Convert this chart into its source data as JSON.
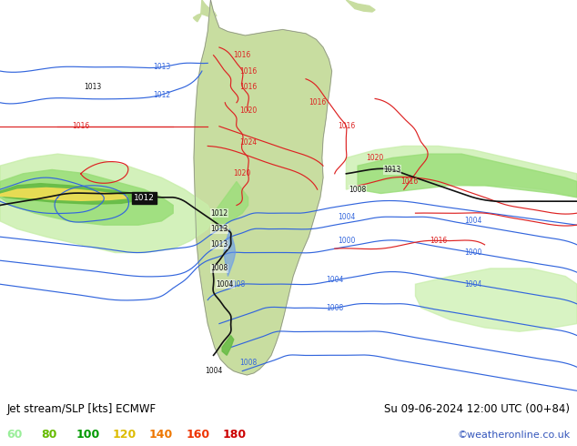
{
  "title_left": "Jet stream/SLP [kts] ECMWF",
  "title_right": "Su 09-06-2024 12:00 UTC (00+84)",
  "credit": "©weatheronline.co.uk",
  "legend_values": [
    60,
    80,
    100,
    120,
    140,
    160,
    180
  ],
  "legend_colors": [
    "#99ee99",
    "#66bb00",
    "#009900",
    "#ddbb00",
    "#ee7700",
    "#ee3300",
    "#cc0000"
  ],
  "bg_color": "#e0e8f0",
  "ocean_color": "#dce8f0",
  "land_color": "#c8dda0",
  "land_color2": "#b8d890",
  "bottom_bar_color": "#c8d4e4",
  "text_color": "#000000",
  "credit_color": "#3355bb",
  "figsize": [
    6.34,
    4.9
  ],
  "dpi": 100,
  "blue_line_color": "#3366dd",
  "red_line_color": "#dd2222",
  "black_line_color": "#111111",
  "green_shade_1": "#c8eeaa",
  "green_shade_2": "#99dd77",
  "green_shade_3": "#66bb44",
  "green_shade_4": "#44aa22",
  "yellow_shade": "#eedd55",
  "orange_shade": "#ee9900"
}
